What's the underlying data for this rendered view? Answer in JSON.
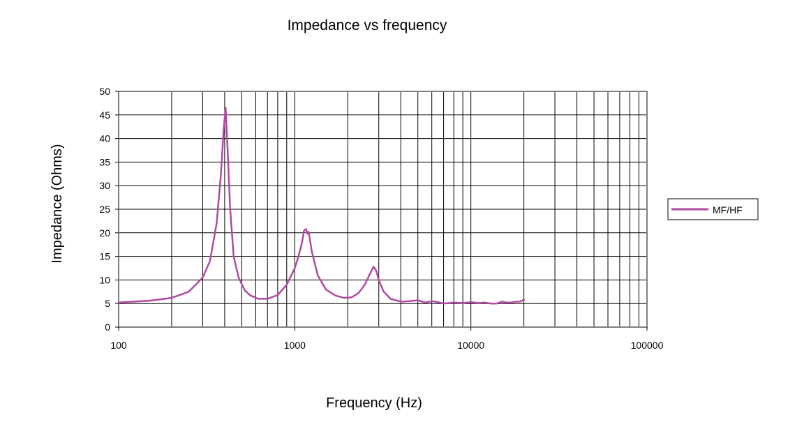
{
  "chart_data": {
    "type": "line",
    "title": "Impedance vs frequency",
    "xlabel": "Frequency (Hz)",
    "ylabel": "Impedance (Ohms)",
    "x_scale": "log",
    "xlim": [
      100,
      100000
    ],
    "ylim": [
      0,
      50
    ],
    "x_ticks": [
      "100",
      "1000",
      "10000",
      "100000"
    ],
    "y_ticks": [
      "0",
      "5",
      "10",
      "15",
      "20",
      "25",
      "30",
      "35",
      "40",
      "45",
      "50"
    ],
    "grid": true,
    "legend": "right",
    "series": [
      {
        "name": "MF/HF",
        "color": "#b14aa0",
        "x": [
          100,
          150,
          200,
          250,
          300,
          330,
          360,
          380,
          395,
          405,
          415,
          430,
          450,
          480,
          520,
          560,
          620,
          700,
          800,
          900,
          1000,
          1050,
          1100,
          1130,
          1160,
          1180,
          1200,
          1250,
          1350,
          1500,
          1700,
          1900,
          2100,
          2300,
          2500,
          2650,
          2800,
          2900,
          3000,
          3200,
          3500,
          4000,
          4500,
          5000,
          5500,
          6000,
          6500,
          7000,
          8000,
          9000,
          10000,
          11000,
          12000,
          13000,
          14000,
          15000,
          16000,
          17000,
          18000,
          19000,
          20000
        ],
        "y": [
          5.2,
          5.6,
          6.2,
          7.5,
          10.5,
          14,
          22,
          32,
          42,
          46.5,
          38,
          25,
          15,
          10.5,
          7.8,
          6.7,
          6.0,
          6.0,
          6.8,
          9.0,
          12.5,
          15,
          18,
          20.5,
          20.8,
          19.8,
          20.2,
          16,
          11,
          8.0,
          6.7,
          6.2,
          6.3,
          7.2,
          9.0,
          11.0,
          12.8,
          12.0,
          10.0,
          7.5,
          6.0,
          5.4,
          5.5,
          5.7,
          5.2,
          5.5,
          5.3,
          5.0,
          5.2,
          5.1,
          5.3,
          5.1,
          5.2,
          5.0,
          5.0,
          5.4,
          5.2,
          5.2,
          5.4,
          5.4,
          5.8
        ]
      }
    ]
  }
}
